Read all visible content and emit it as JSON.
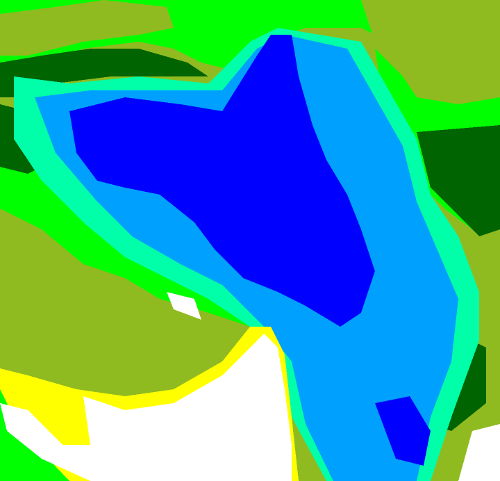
{
  "map": {
    "palette": {
      "olive": "#8fbb21",
      "green": "#00ff00",
      "dark_green": "#006400",
      "aquamarine": "#00ffa8",
      "light_blue": "#00a0ff",
      "blue": "#0000ff",
      "white": "#ffffff",
      "yellow": "#ffff00"
    }
  }
}
